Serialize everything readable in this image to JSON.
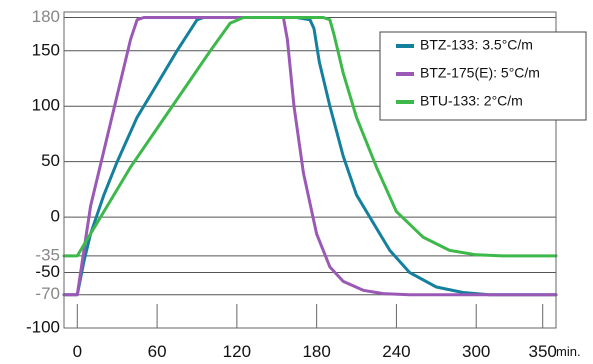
{
  "chart_data": {
    "type": "line",
    "title": "",
    "xlabel": "",
    "ylabel": "",
    "x_unit": "min.",
    "xlim": [
      -10,
      360
    ],
    "ylim": [
      -100,
      185
    ],
    "x_ticks": [
      0,
      60,
      120,
      180,
      240,
      300,
      350
    ],
    "y_ticks": [
      180,
      150,
      100,
      50,
      0,
      -35,
      -50,
      -70,
      -100
    ],
    "y_tick_colors": {
      "180": "#888888",
      "-35": "#888888",
      "-70": "#888888"
    },
    "grid": "horizontal lines",
    "legend_position": "top-right",
    "series": [
      {
        "name": "BTZ-133: 3.5°C/m",
        "color": "#14809e",
        "points": [
          [
            -10,
            -70
          ],
          [
            0,
            -70
          ],
          [
            5,
            -40
          ],
          [
            10,
            -15
          ],
          [
            20,
            20
          ],
          [
            30,
            50
          ],
          [
            45,
            90
          ],
          [
            60,
            120
          ],
          [
            75,
            150
          ],
          [
            90,
            178
          ],
          [
            95,
            180
          ],
          [
            165,
            180
          ],
          [
            175,
            178
          ],
          [
            178,
            170
          ],
          [
            182,
            140
          ],
          [
            190,
            100
          ],
          [
            200,
            55
          ],
          [
            210,
            20
          ],
          [
            220,
            0
          ],
          [
            235,
            -30
          ],
          [
            250,
            -50
          ],
          [
            270,
            -63
          ],
          [
            290,
            -68
          ],
          [
            310,
            -70
          ],
          [
            360,
            -70
          ]
        ]
      },
      {
        "name": "BTZ-175(E): 5°C/m",
        "color": "#9b59b6",
        "points": [
          [
            -10,
            -70
          ],
          [
            0,
            -70
          ],
          [
            5,
            -30
          ],
          [
            10,
            10
          ],
          [
            20,
            60
          ],
          [
            30,
            110
          ],
          [
            40,
            160
          ],
          [
            45,
            178
          ],
          [
            50,
            180
          ],
          [
            145,
            180
          ],
          [
            155,
            180
          ],
          [
            158,
            160
          ],
          [
            163,
            100
          ],
          [
            170,
            40
          ],
          [
            180,
            -15
          ],
          [
            190,
            -45
          ],
          [
            200,
            -58
          ],
          [
            215,
            -66
          ],
          [
            230,
            -69
          ],
          [
            250,
            -70
          ],
          [
            360,
            -70
          ]
        ]
      },
      {
        "name": "BTU-133: 2°C/m",
        "color": "#3db84a",
        "points": [
          [
            -10,
            -35
          ],
          [
            0,
            -35
          ],
          [
            5,
            -25
          ],
          [
            20,
            5
          ],
          [
            40,
            45
          ],
          [
            60,
            80
          ],
          [
            80,
            115
          ],
          [
            100,
            150
          ],
          [
            115,
            175
          ],
          [
            125,
            180
          ],
          [
            185,
            180
          ],
          [
            190,
            178
          ],
          [
            193,
            165
          ],
          [
            200,
            130
          ],
          [
            210,
            90
          ],
          [
            225,
            45
          ],
          [
            240,
            5
          ],
          [
            260,
            -18
          ],
          [
            280,
            -30
          ],
          [
            300,
            -34
          ],
          [
            320,
            -35
          ],
          [
            360,
            -35
          ]
        ]
      }
    ]
  }
}
